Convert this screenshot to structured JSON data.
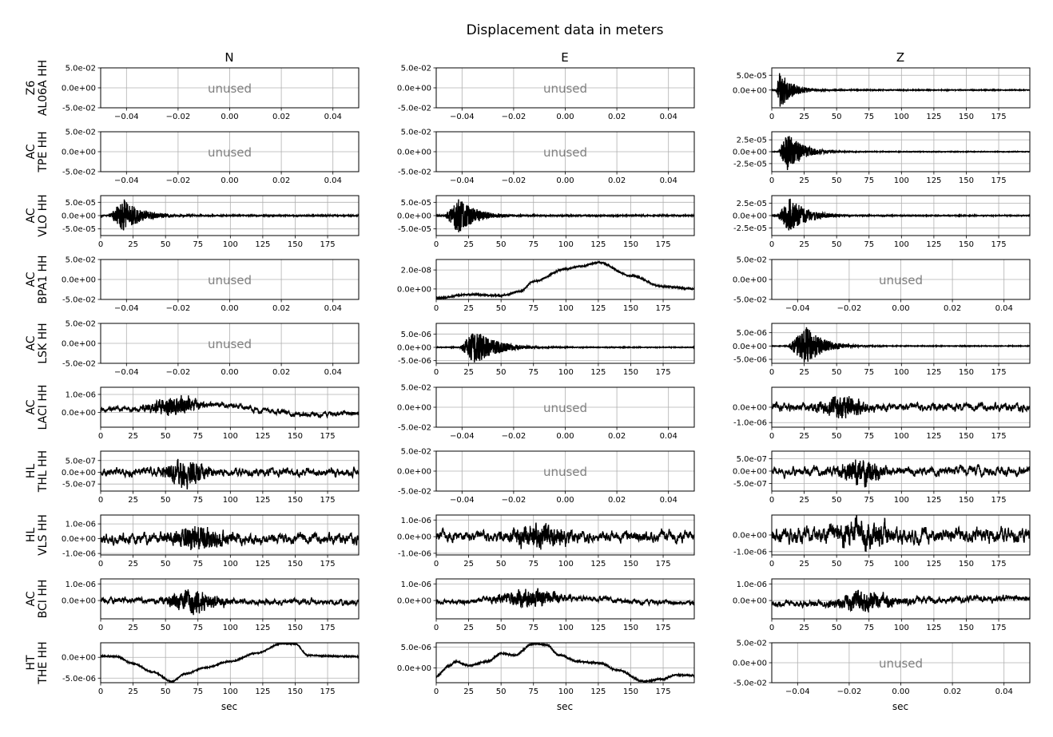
{
  "title": "Displacement data in meters",
  "columns": [
    "N",
    "E",
    "Z"
  ],
  "x_axis_label": "sec",
  "unused_label": "unused",
  "colors": {
    "trace": "#000000",
    "grid": "#b0b0b0",
    "unused_text": "#808080"
  },
  "rows": [
    {
      "network": "Z6",
      "station": "AL06A HH"
    },
    {
      "network": "AC",
      "station": "TPE HH"
    },
    {
      "network": "AC",
      "station": "VLO HH"
    },
    {
      "network": "AC",
      "station": "BPA1 HH"
    },
    {
      "network": "AC",
      "station": "LSK HH"
    },
    {
      "network": "AC",
      "station": "LACI HH"
    },
    {
      "network": "HL",
      "station": "THL HH"
    },
    {
      "network": "HL",
      "station": "VLS HH"
    },
    {
      "network": "AC",
      "station": "BCI HH"
    },
    {
      "network": "HT",
      "station": "THE HH"
    }
  ],
  "chart_data": {
    "type": "line",
    "title": "Displacement data in meters",
    "xlabel": "sec",
    "layout": "grid of small-multiple line panels, rows = stations, columns = components N/E/Z",
    "grid": true,
    "unused_panel": {
      "xlim": [
        -0.05,
        0.05
      ],
      "x_ticks": [
        -0.04,
        -0.02,
        0.0,
        0.02,
        0.04
      ],
      "x_tick_labels": [
        "−0.04",
        "−0.02",
        "0.00",
        "0.02",
        "0.04"
      ],
      "ylim": [
        -0.05,
        0.05
      ],
      "y_ticks": [
        0.05,
        0.0,
        -0.05
      ],
      "y_tick_labels": [
        "5.0e-02",
        "0.0e+00",
        "-5.0e-02"
      ]
    },
    "trace_x": {
      "xlim": [
        0,
        199
      ],
      "x_ticks": [
        0,
        25,
        50,
        75,
        100,
        125,
        150,
        175
      ],
      "x_tick_labels": [
        "0",
        "25",
        "50",
        "75",
        "100",
        "125",
        "150",
        "175"
      ]
    },
    "panels": [
      {
        "row": 0,
        "col": "N",
        "unused": true
      },
      {
        "row": 0,
        "col": "E",
        "unused": true
      },
      {
        "row": 0,
        "col": "Z",
        "unused": false,
        "kind": "burst",
        "ylim": [
          -6e-05,
          7.5e-05
        ],
        "y_ticks": [
          5e-05,
          0
        ],
        "y_tick_labels": [
          "5.0e-05",
          "0.0e+00"
        ],
        "onset": 3,
        "peak_time": 6,
        "amp": 6e-05,
        "decay": 10,
        "noise": 1.2e-06,
        "seed": 11
      },
      {
        "row": 1,
        "col": "N",
        "unused": true
      },
      {
        "row": 1,
        "col": "E",
        "unused": true
      },
      {
        "row": 1,
        "col": "Z",
        "unused": false,
        "kind": "burst",
        "ylim": [
          -4.2e-05,
          4.2e-05
        ],
        "y_ticks": [
          2.5e-05,
          0,
          -2.5e-05
        ],
        "y_tick_labels": [
          "2.5e-05",
          "0.0e+00",
          "-2.5e-05"
        ],
        "onset": 5,
        "peak_time": 12,
        "amp": 3.8e-05,
        "decay": 12,
        "noise": 6e-07,
        "seed": 12
      },
      {
        "row": 2,
        "col": "N",
        "unused": false,
        "kind": "burst",
        "ylim": [
          -7.5e-05,
          7.5e-05
        ],
        "y_ticks": [
          5e-05,
          0,
          -5e-05
        ],
        "y_tick_labels": [
          "5.0e-05",
          "0.0e+00",
          "-5.0e-05"
        ],
        "onset": 6,
        "peak_time": 18,
        "amp": 6e-05,
        "decay": 14,
        "noise": 2e-06,
        "seed": 13
      },
      {
        "row": 2,
        "col": "E",
        "unused": false,
        "kind": "burst",
        "ylim": [
          -7.5e-05,
          7.5e-05
        ],
        "y_ticks": [
          5e-05,
          0,
          -5e-05
        ],
        "y_tick_labels": [
          "5.0e-05",
          "0.0e+00",
          "-5.0e-05"
        ],
        "onset": 6,
        "peak_time": 17,
        "amp": 6.3e-05,
        "decay": 14,
        "noise": 2e-06,
        "seed": 14
      },
      {
        "row": 2,
        "col": "Z",
        "unused": false,
        "kind": "burst",
        "ylim": [
          -4e-05,
          4e-05
        ],
        "y_ticks": [
          2.5e-05,
          0,
          -2.5e-05
        ],
        "y_tick_labels": [
          "2.5e-05",
          "0.0e+00",
          "-2.5e-05"
        ],
        "onset": 4,
        "peak_time": 14,
        "amp": 3.3e-05,
        "decay": 14,
        "noise": 8e-07,
        "seed": 15
      },
      {
        "row": 3,
        "col": "N",
        "unused": true
      },
      {
        "row": 3,
        "col": "E",
        "unused": false,
        "kind": "smooth",
        "ylim": [
          -1.1e-08,
          3.1e-08
        ],
        "y_ticks": [
          2e-08,
          0
        ],
        "y_tick_labels": [
          "2.0e-08",
          "0.0e+00"
        ],
        "points": [
          [
            0,
            -9.5e-09
          ],
          [
            25,
            -5.8e-09
          ],
          [
            50,
            -7e-09
          ],
          [
            65,
            -2.5e-09
          ],
          [
            75,
            8e-09
          ],
          [
            100,
            2.1e-08
          ],
          [
            112,
            2.4e-08
          ],
          [
            125,
            2.8e-08
          ],
          [
            150,
            1.4e-08
          ],
          [
            175,
            2.5e-09
          ],
          [
            199,
            1e-10
          ]
        ],
        "noise": 8e-10,
        "seed": 16
      },
      {
        "row": 3,
        "col": "Z",
        "unused": true
      },
      {
        "row": 4,
        "col": "N",
        "unused": true
      },
      {
        "row": 4,
        "col": "E",
        "unused": false,
        "kind": "burst",
        "ylim": [
          -6e-06,
          9e-06
        ],
        "y_ticks": [
          5e-06,
          0,
          -5e-06
        ],
        "y_tick_labels": [
          "5.0e-06",
          "0.0e+00",
          "-5.0e-06"
        ],
        "onset": 18,
        "peak_time": 30,
        "amp": 6.3e-06,
        "decay": 16,
        "noise": 1.2e-07,
        "seed": 17
      },
      {
        "row": 4,
        "col": "Z",
        "unused": false,
        "kind": "burst",
        "ylim": [
          -6.5e-06,
          8.5e-06
        ],
        "y_ticks": [
          5e-06,
          0,
          -5e-06
        ],
        "y_tick_labels": [
          "5.0e-06",
          "0.0e+00",
          "-5.0e-06"
        ],
        "onset": 12,
        "peak_time": 27,
        "amp": 6.8e-06,
        "decay": 13,
        "noise": 1.2e-07,
        "seed": 18
      },
      {
        "row": 5,
        "col": "N",
        "unused": false,
        "kind": "noisy",
        "ylim": [
          -8.3e-07,
          1.4e-06
        ],
        "y_ticks": [
          1e-06,
          0
        ],
        "y_tick_labels": [
          "1.0e-06",
          "0.0e+00"
        ],
        "base": [
          [
            0,
            1.5e-07
          ],
          [
            25,
            2e-07
          ],
          [
            50,
            3.5e-07
          ],
          [
            75,
            4.5e-07
          ],
          [
            100,
            4e-07
          ],
          [
            125,
            1e-07
          ],
          [
            150,
            -1e-07
          ],
          [
            175,
            -1e-07
          ],
          [
            199,
            -5e-08
          ]
        ],
        "bg": 1.2e-07,
        "onset": 28,
        "peak_time": 57,
        "width": 18,
        "amp": 8e-07,
        "seed": 19
      },
      {
        "row": 5,
        "col": "E",
        "unused": true
      },
      {
        "row": 5,
        "col": "Z",
        "unused": false,
        "kind": "noisy",
        "ylim": [
          -1.3e-06,
          1.3e-06
        ],
        "y_ticks": [
          0,
          -1e-06
        ],
        "y_tick_labels": [
          "0.0e+00",
          "-1.0e-06"
        ],
        "base": [
          [
            0,
            0
          ],
          [
            199,
            0
          ]
        ],
        "bg": 2.2e-07,
        "onset": 25,
        "peak_time": 55,
        "width": 16,
        "amp": 1.1e-06,
        "seed": 20
      },
      {
        "row": 6,
        "col": "N",
        "unused": false,
        "kind": "noisy",
        "ylim": [
          -8e-07,
          9e-07
        ],
        "y_ticks": [
          5e-07,
          0,
          -5e-07
        ],
        "y_tick_labels": [
          "5.0e-07",
          "0.0e+00",
          "-5.0e-07"
        ],
        "base": [
          [
            0,
            0
          ],
          [
            199,
            0
          ]
        ],
        "bg": 1.4e-07,
        "onset": 40,
        "peak_time": 66,
        "width": 15,
        "amp": 8e-07,
        "seed": 21
      },
      {
        "row": 6,
        "col": "Z",
        "unused": false,
        "kind": "noisy",
        "ylim": [
          -8e-07,
          8e-07
        ],
        "y_ticks": [
          5e-07,
          0,
          -5e-07
        ],
        "y_tick_labels": [
          "5.0e-07",
          "0.0e+00",
          "-5.0e-07"
        ],
        "base": [
          [
            0,
            0
          ],
          [
            199,
            0
          ]
        ],
        "bg": 1.5e-07,
        "onset": 35,
        "peak_time": 68,
        "width": 15,
        "amp": 7e-07,
        "seed": 22
      },
      {
        "row": 6,
        "col": "E",
        "unused": true
      },
      {
        "row": 7,
        "col": "N",
        "unused": false,
        "kind": "noisy",
        "ylim": [
          -1.1e-06,
          1.6e-06
        ],
        "y_ticks": [
          1e-06,
          0,
          -1e-06
        ],
        "y_tick_labels": [
          "1.0e-06",
          "0.0e+00",
          "-1.0e-06"
        ],
        "base": [
          [
            0,
            0
          ],
          [
            199,
            0
          ]
        ],
        "bg": 3e-07,
        "onset": 40,
        "peak_time": 75,
        "width": 20,
        "amp": 1.1e-06,
        "seed": 23
      },
      {
        "row": 7,
        "col": "E",
        "unused": false,
        "kind": "noisy",
        "ylim": [
          -1.1e-06,
          1.3e-06
        ],
        "y_ticks": [
          1e-06,
          0,
          -1e-06
        ],
        "y_tick_labels": [
          "1.0e-06",
          "0.0e+00",
          "-1.0e-06"
        ],
        "base": [
          [
            0,
            0
          ],
          [
            199,
            0
          ]
        ],
        "bg": 2.8e-07,
        "onset": 45,
        "peak_time": 80,
        "width": 22,
        "amp": 9.5e-07,
        "seed": 24
      },
      {
        "row": 7,
        "col": "Z",
        "unused": false,
        "kind": "noisy",
        "ylim": [
          -1.2e-06,
          1.2e-06
        ],
        "y_ticks": [
          0,
          -1e-06
        ],
        "y_tick_labels": [
          "0.0e+00",
          "-1.0e-06"
        ],
        "base": [
          [
            0,
            0
          ],
          [
            199,
            0
          ]
        ],
        "bg": 4e-07,
        "onset": 40,
        "peak_time": 70,
        "width": 25,
        "amp": 8e-07,
        "seed": 25
      },
      {
        "row": 8,
        "col": "N",
        "unused": false,
        "kind": "noisy",
        "ylim": [
          -1.1e-06,
          1.3e-06
        ],
        "y_ticks": [
          1e-06,
          0
        ],
        "y_tick_labels": [
          "1.0e-06",
          "0.0e+00"
        ],
        "base": [
          [
            0,
            0
          ],
          [
            199,
            -1e-07
          ]
        ],
        "bg": 1.5e-07,
        "onset": 40,
        "peak_time": 72,
        "width": 20,
        "amp": 9e-07,
        "seed": 26
      },
      {
        "row": 8,
        "col": "E",
        "unused": false,
        "kind": "noisy",
        "ylim": [
          -1.1e-06,
          1.3e-06
        ],
        "y_ticks": [
          1e-06,
          0
        ],
        "y_tick_labels": [
          "1.0e-06",
          "0.0e+00"
        ],
        "base": [
          [
            0,
            -1e-07
          ],
          [
            75,
            2e-07
          ],
          [
            199,
            -1.5e-07
          ]
        ],
        "bg": 1.3e-07,
        "onset": 40,
        "peak_time": 72,
        "width": 25,
        "amp": 7e-07,
        "seed": 27
      },
      {
        "row": 8,
        "col": "Z",
        "unused": false,
        "kind": "noisy",
        "ylim": [
          -1.1e-06,
          1.3e-06
        ],
        "y_ticks": [
          1e-06,
          0
        ],
        "y_tick_labels": [
          "1.0e-06",
          "0.0e+00"
        ],
        "base": [
          [
            0,
            -2e-07
          ],
          [
            199,
            1.5e-07
          ]
        ],
        "bg": 1.8e-07,
        "onset": 40,
        "peak_time": 72,
        "width": 22,
        "amp": 8e-07,
        "seed": 28
      },
      {
        "row": 9,
        "col": "N",
        "unused": false,
        "kind": "smooth",
        "ylim": [
          -6.1e-06,
          3.5e-06
        ],
        "y_ticks": [
          0,
          -5e-06
        ],
        "y_tick_labels": [
          "0.0e+00",
          "-5.0e-06"
        ],
        "points": [
          [
            0,
            3e-07
          ],
          [
            12,
            2e-07
          ],
          [
            25,
            -1.5e-06
          ],
          [
            40,
            -3.5e-06
          ],
          [
            55,
            -5.8e-06
          ],
          [
            65,
            -4e-06
          ],
          [
            80,
            -2.5e-06
          ],
          [
            100,
            -1e-06
          ],
          [
            120,
            1e-06
          ],
          [
            140,
            3.3e-06
          ],
          [
            150,
            3.2e-06
          ],
          [
            160,
            5e-07
          ],
          [
            175,
            3e-07
          ],
          [
            199,
            2e-07
          ]
        ],
        "noise": 1.2e-07,
        "seed": 29
      },
      {
        "row": 9,
        "col": "E",
        "unused": false,
        "kind": "smooth",
        "ylim": [
          -3.5e-06,
          6e-06
        ],
        "y_ticks": [
          5e-06,
          0
        ],
        "y_tick_labels": [
          "5.0e-06",
          "0.0e+00"
        ],
        "points": [
          [
            0,
            -1.9e-06
          ],
          [
            10,
            5e-07
          ],
          [
            15,
            1.5e-06
          ],
          [
            25,
            6e-07
          ],
          [
            40,
            1.6e-06
          ],
          [
            50,
            3.5e-06
          ],
          [
            60,
            3e-06
          ],
          [
            75,
            5.8e-06
          ],
          [
            85,
            5.5e-06
          ],
          [
            95,
            3e-06
          ],
          [
            110,
            1.5e-06
          ],
          [
            125,
            1.2e-06
          ],
          [
            140,
            -5e-07
          ],
          [
            160,
            -3.2e-06
          ],
          [
            175,
            -2.6e-06
          ],
          [
            185,
            -1.6e-06
          ],
          [
            199,
            -1.8e-06
          ]
        ],
        "noise": 2e-07,
        "seed": 30
      },
      {
        "row": 9,
        "col": "Z",
        "unused": true
      }
    ]
  }
}
